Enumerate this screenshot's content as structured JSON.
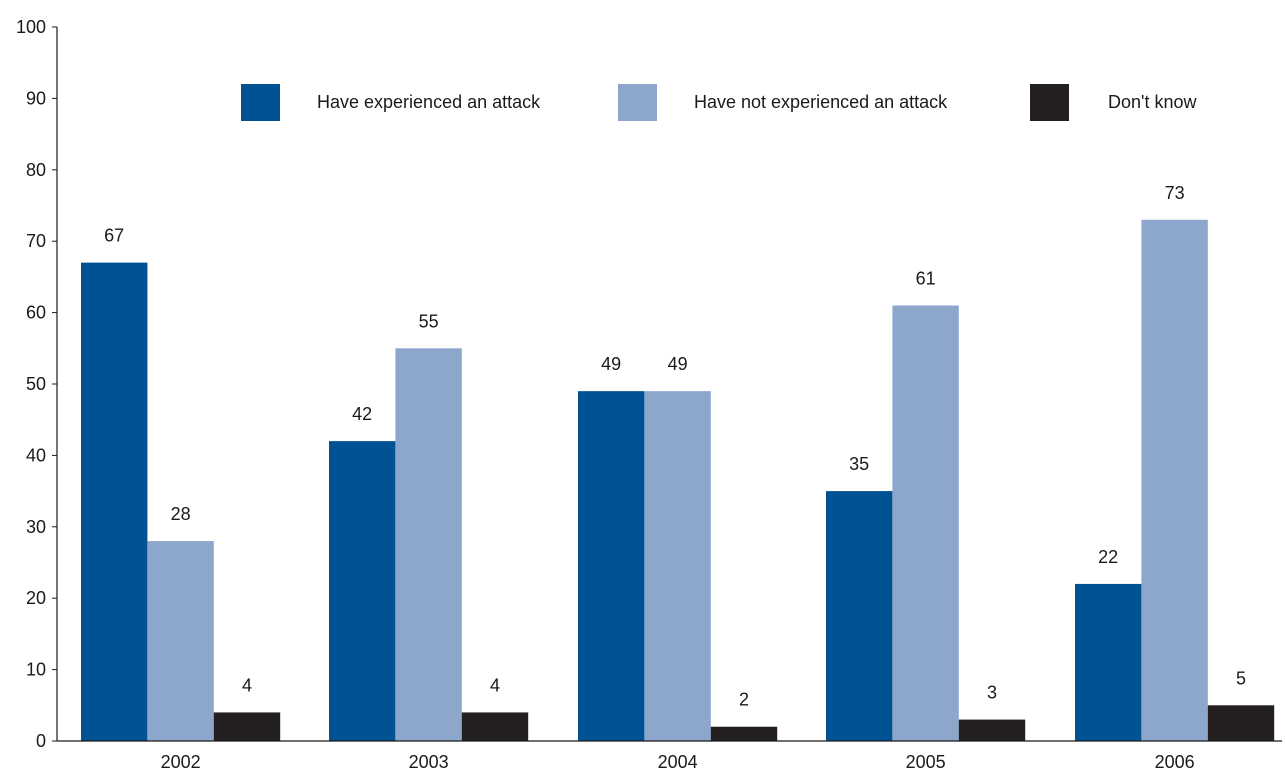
{
  "chart_data": {
    "type": "bar",
    "title": "",
    "xlabel": "",
    "ylabel": "",
    "categories": [
      "2002",
      "2003",
      "2004",
      "2005",
      "2006"
    ],
    "ylim": [
      0,
      100
    ],
    "yticks": [
      0,
      10,
      20,
      30,
      40,
      50,
      60,
      70,
      80,
      90,
      100
    ],
    "grid": false,
    "legend_position": "top",
    "series": [
      {
        "name": "Have experienced an attack",
        "color": "#005293",
        "values": [
          67,
          42,
          49,
          35,
          22
        ]
      },
      {
        "name": "Have not experienced an attack",
        "color": "#8da6cc",
        "values": [
          28,
          55,
          49,
          61,
          73
        ]
      },
      {
        "name": "Don't know",
        "color": "#231f20",
        "values": [
          4,
          4,
          2,
          3,
          5
        ]
      }
    ]
  }
}
